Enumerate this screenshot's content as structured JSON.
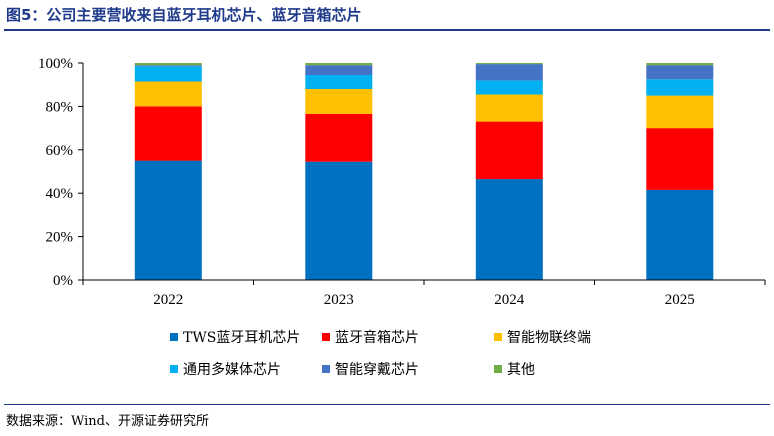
{
  "header": {
    "title": "图5：公司主要营收来自蓝牙耳机芯片、蓝牙音箱芯片"
  },
  "footer": {
    "source": "数据来源：Wind、开源证券研究所"
  },
  "chart_data": {
    "type": "bar",
    "stacked": true,
    "categories": [
      "2022",
      "2023",
      "2024",
      "2025"
    ],
    "series": [
      {
        "name": "TWS蓝牙耳机芯片",
        "color": "#0070c0",
        "values": [
          55,
          54.5,
          46.5,
          41.5
        ]
      },
      {
        "name": "蓝牙音箱芯片",
        "color": "#ff0000",
        "values": [
          25,
          22,
          26.5,
          28.5
        ]
      },
      {
        "name": "智能物联终端",
        "color": "#ffc000",
        "values": [
          11.5,
          11.5,
          12.5,
          15
        ]
      },
      {
        "name": "通用多媒体芯片",
        "color": "#00b0f0",
        "values": [
          7,
          6.5,
          6.5,
          7.5
        ]
      },
      {
        "name": "智能穿戴芯片",
        "color": "#4472c4",
        "values": [
          0.5,
          4.5,
          7.5,
          6.5
        ]
      },
      {
        "name": "其他",
        "color": "#70ad47",
        "values": [
          1,
          1,
          0.5,
          1
        ]
      }
    ],
    "yticks": [
      "0%",
      "20%",
      "40%",
      "60%",
      "80%",
      "100%"
    ],
    "ylim": [
      0,
      100
    ],
    "grid": false,
    "legend_position": "bottom"
  }
}
